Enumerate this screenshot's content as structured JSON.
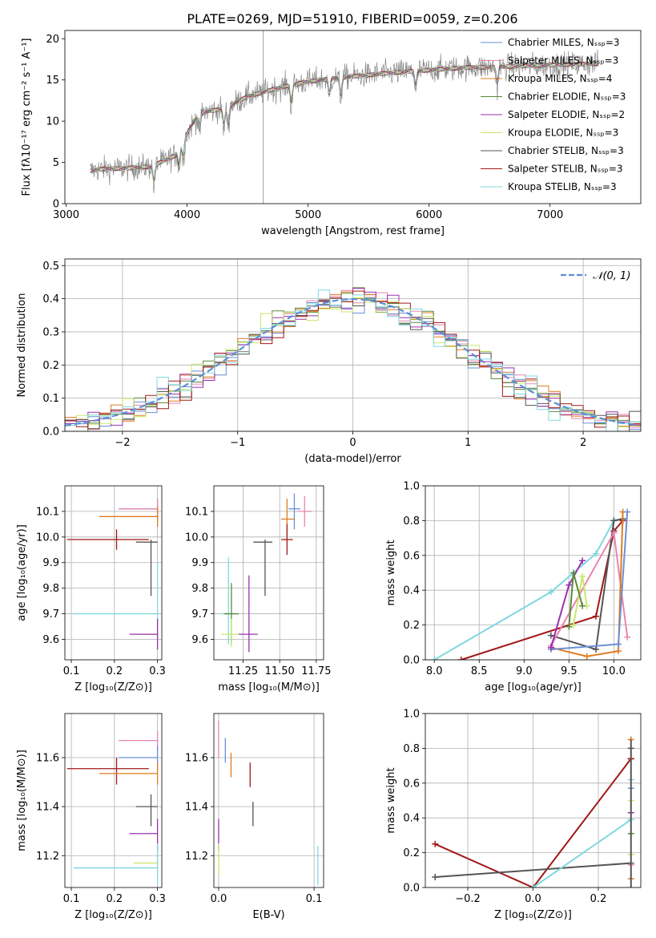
{
  "title": "PLATE=0269, MJD=51910, FIBERID=0059, z=0.206",
  "colors": {
    "chabrier_miles": "#6b8fd6",
    "salpeter_miles": "#e884b0",
    "kroupa_miles": "#e07b20",
    "chabrier_elodie": "#5a8a3a",
    "salpeter_elodie": "#9b30b0",
    "kroupa_elodie": "#c8e86a",
    "chabrier_stelib": "#555555",
    "salpeter_stelib": "#a01818",
    "kroupa_stelib": "#7fd8df",
    "normal": "#5b8fd6",
    "data": "#888888"
  },
  "chart_data": [
    {
      "id": "spectrum",
      "type": "line",
      "title": "PLATE=0269, MJD=51910, FIBERID=0059, z=0.206",
      "xlabel": "wavelength [Angstrom, rest frame]",
      "ylabel": "Flux [fλ10⁻¹⁷ erg cm⁻² s⁻¹ A⁻¹]",
      "xlim": [
        2990,
        7750
      ],
      "ylim": [
        0,
        21
      ],
      "xticks": [
        "3000",
        "4000",
        "5000",
        "6000",
        "7000"
      ],
      "xtick_values": [
        3000,
        4000,
        5000,
        6000,
        7000
      ],
      "yticks": [
        "0",
        "5",
        "10",
        "15",
        "20"
      ],
      "ytick_values": [
        0,
        5,
        10,
        15,
        20
      ],
      "grid": false,
      "legend_position": "bottom-right",
      "legend": [
        "Chabrier MILES, Nₛₛₚ=3",
        "Salpeter MILES, Nₛₛₚ=3",
        "Kroupa MILES, Nₛₛₚ=4",
        "Chabrier ELODIE, Nₛₛₚ=3",
        "Salpeter ELODIE, Nₛₛₚ=2",
        "Kroupa ELODIE, Nₛₛₚ=3",
        "Chabrier STELIB, Nₛₛₚ=3",
        "Salpeter STELIB, Nₛₛₚ=3",
        "Kroupa STELIB, Nₛₛₚ=3"
      ],
      "continuum_x": [
        3200,
        3300,
        3500,
        3700,
        3900,
        4000,
        4100,
        4300,
        4500,
        4800,
        5000,
        5200,
        5500,
        5800,
        6000,
        6300,
        6600,
        7000,
        7400
      ],
      "continuum_y": [
        4.0,
        4.2,
        4.3,
        4.5,
        5.8,
        8.5,
        11.0,
        11.5,
        13.0,
        14.2,
        14.8,
        15.2,
        15.6,
        16.0,
        16.2,
        16.5,
        16.6,
        16.8,
        17.0
      ]
    },
    {
      "id": "residual-histogram",
      "type": "line",
      "xlabel": "(data-model)/error",
      "ylabel": "Normed distribution",
      "xlim": [
        -2.5,
        2.5
      ],
      "ylim": [
        0,
        0.52
      ],
      "xticks": [
        "−2",
        "−1",
        "0",
        "1",
        "2"
      ],
      "xtick_values": [
        -2,
        -1,
        0,
        1,
        2
      ],
      "yticks": [
        "0.0",
        "0.1",
        "0.2",
        "0.3",
        "0.4",
        "0.5"
      ],
      "ytick_values": [
        0,
        0.1,
        0.2,
        0.3,
        0.4,
        0.5
      ],
      "grid": true,
      "legend_position": "top-right",
      "legend": [
        "𝒩(0, 1)"
      ],
      "bin_width": 0.1
    },
    {
      "id": "age-vs-z",
      "type": "scatter",
      "xlabel": "Z [log₁₀(Z/Z⊙)]",
      "ylabel": "age [log₁₀(age/yr)]",
      "xlim": [
        0.085,
        0.31
      ],
      "ylim": [
        9.52,
        10.2
      ],
      "xticks": [
        "0.1",
        "0.2",
        "0.3"
      ],
      "xtick_values": [
        0.1,
        0.2,
        0.3
      ],
      "yticks": [
        "9.6",
        "9.7",
        "9.8",
        "9.9",
        "10.0",
        "10.1"
      ],
      "ytick_values": [
        9.6,
        9.7,
        9.8,
        9.9,
        10.0,
        10.1
      ],
      "grid": true,
      "points": [
        {
          "model": "chabrier_miles",
          "x": 0.3,
          "y": 10.11,
          "xerr": [
            0.21,
            0.3
          ],
          "yerr": [
            10.07,
            10.15
          ]
        },
        {
          "model": "salpeter_miles",
          "x": 0.3,
          "y": 10.11,
          "xerr": [
            0.21,
            0.3
          ],
          "yerr": [
            10.07,
            10.15
          ]
        },
        {
          "model": "kroupa_miles",
          "x": 0.3,
          "y": 10.08,
          "xerr": [
            0.165,
            0.3
          ],
          "yerr": [
            10.04,
            10.12
          ]
        },
        {
          "model": "salpeter_stelib",
          "x": 0.205,
          "y": 9.99,
          "xerr": [
            0.09,
            0.28
          ],
          "yerr": [
            9.95,
            10.03
          ]
        },
        {
          "model": "chabrier_stelib",
          "x": 0.285,
          "y": 9.98,
          "xerr": [
            0.25,
            0.3
          ],
          "yerr": [
            9.77,
            9.99
          ]
        },
        {
          "model": "kroupa_stelib",
          "x": 0.3,
          "y": 9.7,
          "xerr": [
            0.105,
            0.3
          ],
          "yerr": [
            9.6,
            9.9
          ]
        },
        {
          "model": "kroupa_elodie",
          "x": 0.3,
          "y": 9.62,
          "xerr": [
            0.245,
            0.3
          ],
          "yerr": [
            9.56,
            9.68
          ]
        },
        {
          "model": "salpeter_elodie",
          "x": 0.3,
          "y": 9.62,
          "xerr": [
            0.235,
            0.3
          ],
          "yerr": [
            9.56,
            9.68
          ]
        }
      ]
    },
    {
      "id": "age-vs-mass",
      "type": "scatter",
      "xlabel": "mass [log₁₀(M/M⊙)]",
      "ylabel": "",
      "xlim": [
        11.05,
        11.8
      ],
      "ylim": [
        9.52,
        10.2
      ],
      "xticks": [
        "11.25",
        "11.50",
        "11.75"
      ],
      "xtick_values": [
        11.25,
        11.5,
        11.75
      ],
      "yticks": [
        "9.6",
        "9.7",
        "9.8",
        "9.9",
        "10.0",
        "10.1"
      ],
      "ytick_values": [
        9.6,
        9.7,
        9.8,
        9.9,
        10.0,
        10.1
      ],
      "grid": true,
      "points": [
        {
          "model": "chabrier_miles",
          "x": 11.6,
          "y": 10.11,
          "xerr": [
            11.56,
            11.64
          ],
          "yerr": [
            10.03,
            10.17
          ]
        },
        {
          "model": "salpeter_miles",
          "x": 11.67,
          "y": 10.1,
          "xerr": [
            11.62,
            11.72
          ],
          "yerr": [
            10.04,
            10.16
          ]
        },
        {
          "model": "kroupa_miles",
          "x": 11.55,
          "y": 10.07,
          "xerr": [
            11.51,
            11.6
          ],
          "yerr": [
            10.01,
            10.15
          ]
        },
        {
          "model": "salpeter_stelib",
          "x": 11.55,
          "y": 9.99,
          "xerr": [
            11.51,
            11.59
          ],
          "yerr": [
            9.93,
            10.05
          ]
        },
        {
          "model": "chabrier_stelib",
          "x": 11.4,
          "y": 9.98,
          "xerr": [
            11.32,
            11.45
          ],
          "yerr": [
            9.77,
            9.99
          ]
        },
        {
          "model": "kroupa_stelib",
          "x": 11.15,
          "y": 9.7,
          "xerr": [
            11.1,
            11.2
          ],
          "yerr": [
            9.58,
            9.92
          ]
        },
        {
          "model": "chabrier_elodie",
          "x": 11.17,
          "y": 9.7,
          "xerr": [
            11.12,
            11.22
          ],
          "yerr": [
            9.58,
            9.82
          ]
        },
        {
          "model": "kroupa_elodie",
          "x": 11.17,
          "y": 9.62,
          "xerr": [
            11.1,
            11.22
          ],
          "yerr": [
            9.57,
            9.68
          ]
        },
        {
          "model": "salpeter_elodie",
          "x": 11.29,
          "y": 9.62,
          "xerr": [
            11.22,
            11.35
          ],
          "yerr": [
            9.55,
            9.85
          ]
        }
      ]
    },
    {
      "id": "weight-vs-age",
      "type": "line",
      "xlabel": "age [log₁₀(age/yr)]",
      "ylabel": "mass weight",
      "xlim": [
        7.9,
        10.3
      ],
      "ylim": [
        0,
        1.0
      ],
      "xticks": [
        "8.0",
        "8.5",
        "9.0",
        "9.5",
        "10.0"
      ],
      "xtick_values": [
        8.0,
        8.5,
        9.0,
        9.5,
        10.0
      ],
      "yticks": [
        "0.0",
        "0.2",
        "0.4",
        "0.6",
        "0.8",
        "1.0"
      ],
      "ytick_values": [
        0,
        0.2,
        0.4,
        0.6,
        0.8,
        1.0
      ],
      "grid": true,
      "series": [
        {
          "model": "kroupa_stelib",
          "x": [
            8.0,
            9.3,
            9.8,
            10.0
          ],
          "y": [
            0.0,
            0.39,
            0.61,
            0.8
          ]
        },
        {
          "model": "salpeter_stelib",
          "x": [
            8.3,
            9.8,
            10.0,
            10.1
          ],
          "y": [
            0.0,
            0.25,
            0.74,
            0.8
          ]
        },
        {
          "model": "chabrier_stelib",
          "x": [
            9.3,
            9.8,
            10.0,
            10.1
          ],
          "y": [
            0.14,
            0.06,
            0.8,
            0.81
          ]
        },
        {
          "model": "salpeter_miles",
          "x": [
            9.3,
            10.0,
            10.15
          ],
          "y": [
            0.08,
            0.73,
            0.13
          ]
        },
        {
          "model": "kroupa_miles",
          "x": [
            9.3,
            9.7,
            10.05,
            10.1
          ],
          "y": [
            0.07,
            0.02,
            0.05,
            0.85
          ]
        },
        {
          "model": "chabrier_miles",
          "x": [
            9.3,
            10.05,
            10.15
          ],
          "y": [
            0.06,
            0.09,
            0.85
          ]
        },
        {
          "model": "salpeter_elodie",
          "x": [
            9.3,
            9.5,
            9.65
          ],
          "y": [
            0.07,
            0.43,
            0.57
          ]
        },
        {
          "model": "kroupa_elodie",
          "x": [
            9.55,
            9.65,
            9.7
          ],
          "y": [
            0.2,
            0.48,
            0.31
          ]
        },
        {
          "model": "chabrier_elodie",
          "x": [
            9.5,
            9.55,
            9.65
          ],
          "y": [
            0.19,
            0.5,
            0.31
          ]
        }
      ]
    },
    {
      "id": "mass-vs-z",
      "type": "scatter",
      "xlabel": "Z [log₁₀(Z/Z⊙)]",
      "ylabel": "mass [log₁₀(M/M⊙)]",
      "xlim": [
        0.085,
        0.31
      ],
      "ylim": [
        11.07,
        11.78
      ],
      "xticks": [
        "0.1",
        "0.2",
        "0.3"
      ],
      "xtick_values": [
        0.1,
        0.2,
        0.3
      ],
      "yticks": [
        "11.2",
        "11.4",
        "11.6"
      ],
      "ytick_values": [
        11.2,
        11.4,
        11.6
      ],
      "grid": true,
      "points": [
        {
          "model": "salpeter_miles",
          "x": 0.3,
          "y": 11.67,
          "xerr": [
            0.21,
            0.3
          ],
          "yerr": [
            11.63,
            11.71
          ]
        },
        {
          "model": "chabrier_miles",
          "x": 0.3,
          "y": 11.6,
          "xerr": [
            0.21,
            0.3
          ],
          "yerr": [
            11.55,
            11.65
          ]
        },
        {
          "model": "salpeter_stelib",
          "x": 0.205,
          "y": 11.555,
          "xerr": [
            0.09,
            0.28
          ],
          "yerr": [
            11.49,
            11.6
          ]
        },
        {
          "model": "kroupa_miles",
          "x": 0.3,
          "y": 11.535,
          "xerr": [
            0.165,
            0.3
          ],
          "yerr": [
            11.49,
            11.58
          ]
        },
        {
          "model": "chabrier_stelib",
          "x": 0.285,
          "y": 11.4,
          "xerr": [
            0.25,
            0.3
          ],
          "yerr": [
            11.32,
            11.45
          ]
        },
        {
          "model": "salpeter_elodie",
          "x": 0.3,
          "y": 11.29,
          "xerr": [
            0.235,
            0.3
          ],
          "yerr": [
            11.22,
            11.35
          ]
        },
        {
          "model": "kroupa_elodie",
          "x": 0.3,
          "y": 11.17,
          "xerr": [
            0.245,
            0.3
          ],
          "yerr": [
            11.12,
            11.22
          ]
        },
        {
          "model": "kroupa_stelib",
          "x": 0.3,
          "y": 11.15,
          "xerr": [
            0.105,
            0.3
          ],
          "yerr": [
            11.08,
            11.25
          ]
        }
      ]
    },
    {
      "id": "mass-vs-ebv",
      "type": "scatter",
      "xlabel": "E(B-V)",
      "ylabel": "",
      "xlim": [
        -0.005,
        0.11
      ],
      "ylim": [
        11.07,
        11.78
      ],
      "xticks": [
        "0.0",
        "0.1"
      ],
      "xtick_values": [
        0.0,
        0.1
      ],
      "yticks": [
        "11.2",
        "11.4",
        "11.6"
      ],
      "ytick_values": [
        11.2,
        11.4,
        11.6
      ],
      "grid": true,
      "points": [
        {
          "model": "salpeter_miles",
          "x": 0.0,
          "y": 11.67,
          "xerr": [
            0.0,
            0.0
          ],
          "yerr": [
            11.6,
            11.75
          ]
        },
        {
          "model": "chabrier_miles",
          "x": 0.007,
          "y": 11.63,
          "xerr": [
            0.007,
            0.007
          ],
          "yerr": [
            11.58,
            11.68
          ]
        },
        {
          "model": "kroupa_miles",
          "x": 0.013,
          "y": 11.57,
          "xerr": [
            0.013,
            0.013
          ],
          "yerr": [
            11.52,
            11.62
          ]
        },
        {
          "model": "salpeter_stelib",
          "x": 0.033,
          "y": 11.53,
          "xerr": [
            0.033,
            0.033
          ],
          "yerr": [
            11.48,
            11.58
          ]
        },
        {
          "model": "chabrier_stelib",
          "x": 0.036,
          "y": 11.37,
          "xerr": [
            0.036,
            0.036
          ],
          "yerr": [
            11.32,
            11.42
          ]
        },
        {
          "model": "salpeter_elodie",
          "x": 0.0,
          "y": 11.29,
          "xerr": [
            0.0,
            0.0
          ],
          "yerr": [
            11.22,
            11.35
          ]
        },
        {
          "model": "kroupa_elodie",
          "x": 0.0,
          "y": 11.19,
          "xerr": [
            0.0,
            0.0
          ],
          "yerr": [
            11.12,
            11.25
          ]
        },
        {
          "model": "kroupa_stelib",
          "x": 0.104,
          "y": 11.15,
          "xerr": [
            0.104,
            0.104
          ],
          "yerr": [
            11.08,
            11.24
          ]
        }
      ]
    },
    {
      "id": "weight-vs-z",
      "type": "line",
      "xlabel": "Z [log₁₀(Z/Z⊙)]",
      "ylabel": "mass weight",
      "xlim": [
        -0.33,
        0.33
      ],
      "ylim": [
        0,
        1.0
      ],
      "xticks": [
        "−0.2",
        "0.0",
        "0.2"
      ],
      "xtick_values": [
        -0.2,
        0.0,
        0.2
      ],
      "yticks": [
        "0.0",
        "0.2",
        "0.4",
        "0.6",
        "0.8",
        "1.0"
      ],
      "ytick_values": [
        0,
        0.2,
        0.4,
        0.6,
        0.8,
        1.0
      ],
      "grid": true,
      "series": [
        {
          "model": "salpeter_stelib",
          "x": [
            -0.3,
            0.0,
            0.3
          ],
          "y": [
            0.25,
            0.0,
            0.74
          ]
        },
        {
          "model": "chabrier_stelib",
          "x": [
            -0.3,
            0.3
          ],
          "y": [
            0.06,
            0.14
          ]
        },
        {
          "model": "kroupa_stelib",
          "x": [
            0.0,
            0.3
          ],
          "y": [
            0.0,
            0.39
          ]
        }
      ],
      "markers_x": 0.3,
      "markers": [
        {
          "model": "kroupa_miles",
          "y": 0.85
        },
        {
          "model": "chabrier_stelib",
          "y": 0.8
        },
        {
          "model": "salpeter_stelib",
          "y": 0.74
        },
        {
          "model": "kroupa_stelib",
          "y": 0.62
        },
        {
          "model": "chabrier_miles",
          "y": 0.57
        },
        {
          "model": "kroupa_elodie",
          "y": 0.5
        },
        {
          "model": "salpeter_elodie",
          "y": 0.43
        },
        {
          "model": "chabrier_elodie",
          "y": 0.31
        },
        {
          "model": "kroupa_elodie",
          "y": 0.19
        },
        {
          "model": "salpeter_miles",
          "y": 0.13
        },
        {
          "model": "kroupa_miles",
          "y": 0.05
        }
      ]
    }
  ]
}
